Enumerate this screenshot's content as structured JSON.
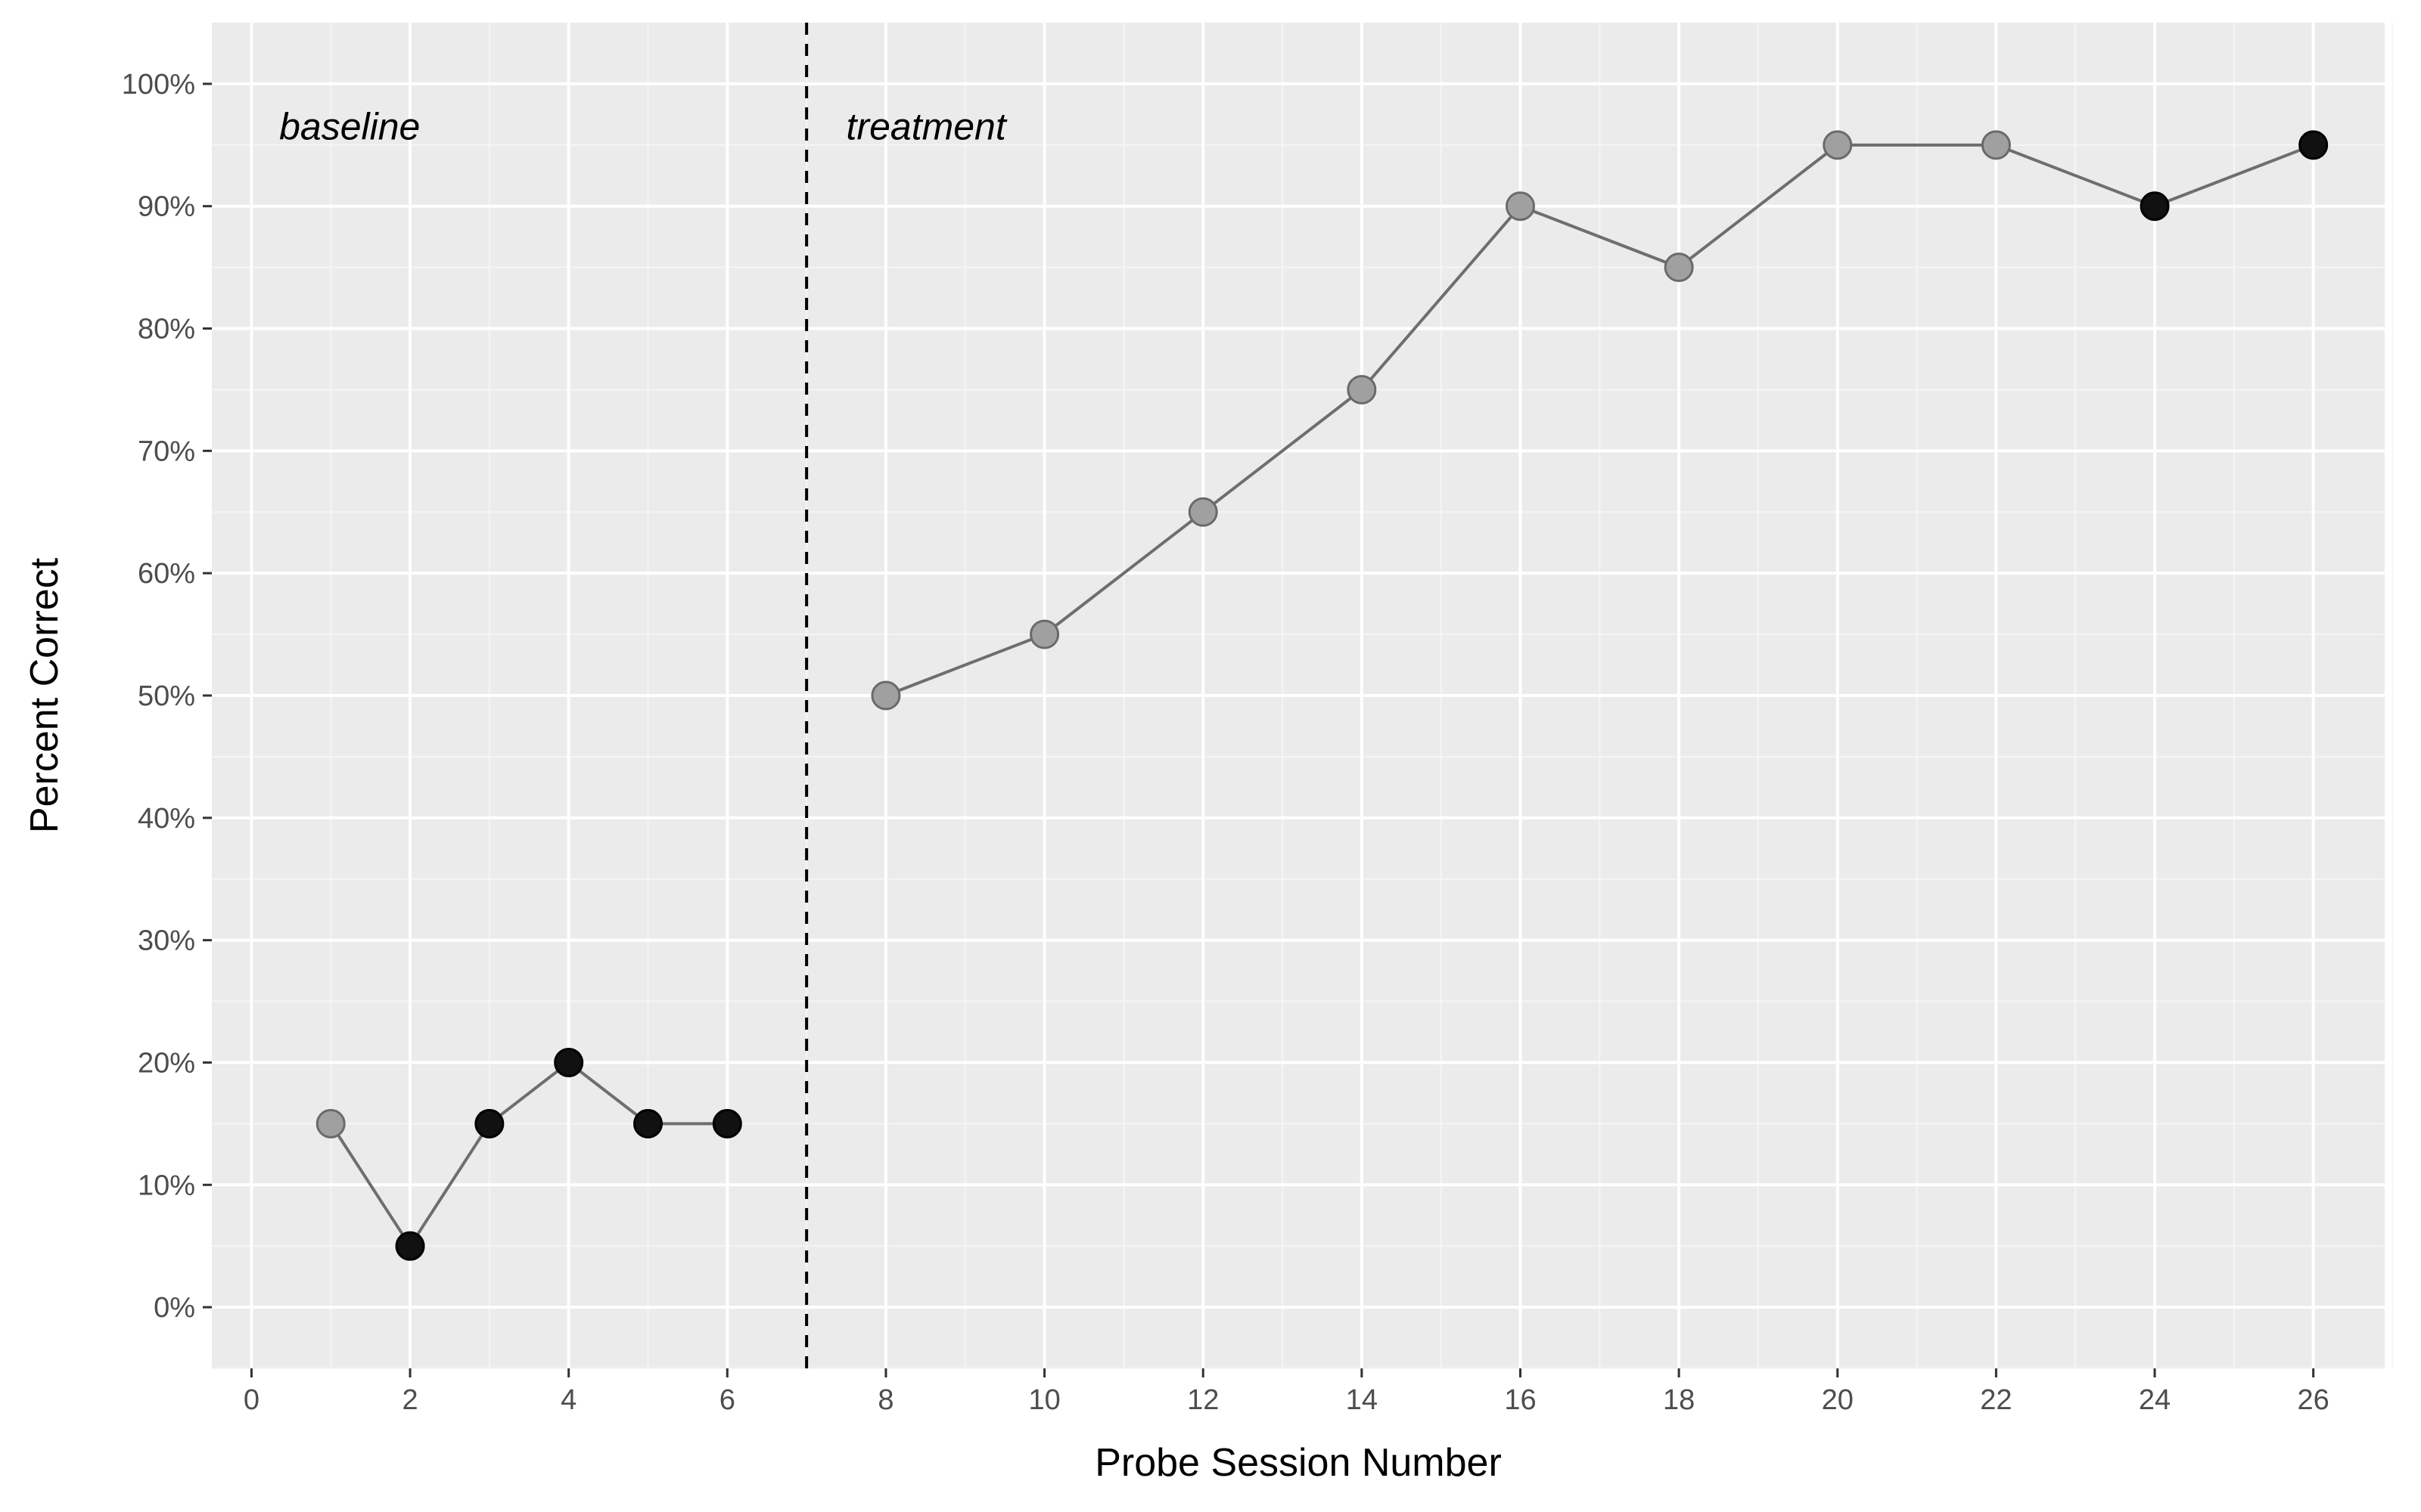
{
  "chart_data": {
    "type": "scatter",
    "title": "",
    "xlabel": "Probe Session Number",
    "ylabel": "Percent Correct",
    "xlim": [
      -0.5,
      26.9
    ],
    "ylim": [
      -5,
      105
    ],
    "x_ticks": [
      0,
      2,
      4,
      6,
      8,
      10,
      12,
      14,
      16,
      18,
      20,
      22,
      24,
      26
    ],
    "x_tick_labels": [
      "0",
      "2",
      "4",
      "6",
      "8",
      "10",
      "12",
      "14",
      "16",
      "18",
      "20",
      "22",
      "24",
      "26"
    ],
    "y_ticks": [
      0,
      10,
      20,
      30,
      40,
      50,
      60,
      70,
      80,
      90,
      100
    ],
    "y_tick_labels": [
      "0%",
      "10%",
      "20%",
      "30%",
      "40%",
      "50%",
      "60%",
      "70%",
      "80%",
      "90%",
      "100%"
    ],
    "grid": true,
    "phase_change_x": 7,
    "phase_labels": [
      {
        "text": "baseline",
        "x": 0.35,
        "y": 96.5
      },
      {
        "text": "treatment",
        "x": 7.5,
        "y": 96.5
      }
    ],
    "series": [
      {
        "segments": [
          [
            {
              "x": 1,
              "y": 15,
              "fill": "gray"
            },
            {
              "x": 2,
              "y": 5,
              "fill": "black"
            },
            {
              "x": 3,
              "y": 15,
              "fill": "black"
            },
            {
              "x": 4,
              "y": 20,
              "fill": "black"
            },
            {
              "x": 5,
              "y": 15,
              "fill": "black"
            },
            {
              "x": 6,
              "y": 15,
              "fill": "black"
            }
          ],
          [
            {
              "x": 8,
              "y": 50,
              "fill": "gray"
            },
            {
              "x": 10,
              "y": 55,
              "fill": "gray"
            },
            {
              "x": 12,
              "y": 65,
              "fill": "gray"
            },
            {
              "x": 14,
              "y": 75,
              "fill": "gray"
            },
            {
              "x": 16,
              "y": 90,
              "fill": "gray"
            },
            {
              "x": 18,
              "y": 85,
              "fill": "gray"
            },
            {
              "x": 20,
              "y": 95,
              "fill": "gray"
            },
            {
              "x": 22,
              "y": 95,
              "fill": "gray"
            },
            {
              "x": 24,
              "y": 90,
              "fill": "black"
            },
            {
              "x": 26,
              "y": 95,
              "fill": "black"
            }
          ]
        ]
      }
    ],
    "colors": {
      "panel_background": "#ebebeb",
      "grid_major": "#ffffff",
      "grid_minor": "#f5f5f5",
      "line": "#6e6e6e",
      "point_gray": "#a0a0a0",
      "point_black": "#111111",
      "phase_line": "#000000"
    }
  }
}
